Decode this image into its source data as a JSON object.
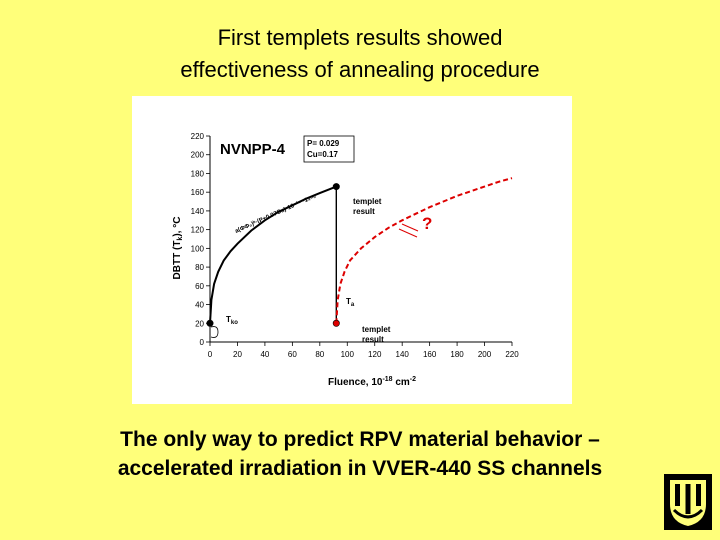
{
  "slide": {
    "title_line1": "First templets results showed",
    "title_line2": "effectiveness of annealing procedure",
    "caption_line1": "The only way to predict RPV material behavior –",
    "caption_line2": "accelerated irradiation in VVER-440 SS channels"
  },
  "colors": {
    "background": "#ffff7a",
    "measured": "#000000",
    "predicted": "#dd0000"
  },
  "logo": {
    "icon": "institute-logo-icon"
  },
  "chart_data": {
    "type": "line",
    "title": "NVNPP-4",
    "legend_box": [
      "P= 0.029",
      "Cu=0.17"
    ],
    "xlabel": "Fluence, 10",
    "xlabel_exp": "-18",
    "xlabel_unit": " cm",
    "xlabel_unit_exp": "-2",
    "ylabel": "DBTT (T",
    "ylabel_sub": "k",
    "ylabel_end": "), °C",
    "xlim": [
      0,
      220
    ],
    "ylim": [
      0,
      220
    ],
    "xticks": [
      0,
      20,
      40,
      60,
      80,
      100,
      120,
      140,
      160,
      180,
      200,
      220
    ],
    "yticks": [
      0,
      20,
      40,
      60,
      80,
      100,
      120,
      140,
      160,
      180,
      200,
      220
    ],
    "series": [
      {
        "style": "solid",
        "color": "#000000",
        "x": [
          0,
          1,
          3,
          6,
          10,
          15,
          20,
          30,
          40,
          50,
          60,
          70,
          80,
          92
        ],
        "y": [
          20,
          45,
          62,
          75,
          87,
          97,
          105,
          119,
          130,
          139,
          146,
          153,
          159,
          166
        ]
      },
      {
        "style": "drop",
        "color": "#000000",
        "x": [
          92,
          92
        ],
        "y": [
          166,
          20
        ]
      },
      {
        "style": "dashed",
        "color": "#dd0000",
        "x": [
          92,
          93,
          95,
          98,
          102,
          110,
          120,
          130,
          140,
          150,
          160,
          170,
          180,
          190,
          200,
          210,
          220
        ],
        "y": [
          20,
          45,
          62,
          75,
          87,
          100,
          112,
          122,
          130,
          137,
          144,
          150,
          156,
          161,
          166,
          171,
          175
        ]
      }
    ],
    "points": [
      {
        "x": 92,
        "y": 166,
        "color": "#000000"
      },
      {
        "x": 92,
        "y": 20,
        "color": "#dd0000"
      },
      {
        "x": 0,
        "y": 20,
        "color": "#000000"
      }
    ],
    "annotations": {
      "formula": "a(ΦΦ₀)ᵇ·(P+0.07Cu)·10⁻¹⁸ ·1₄₋₀",
      "templet_upper_1": "templet",
      "templet_upper_2": "result",
      "templet_lower_1": "templet",
      "templet_lower_2": "result",
      "ta_main": "T",
      "ta_sub": "a",
      "tko_main": "T",
      "tko_sub": "ko",
      "question": "?"
    }
  }
}
